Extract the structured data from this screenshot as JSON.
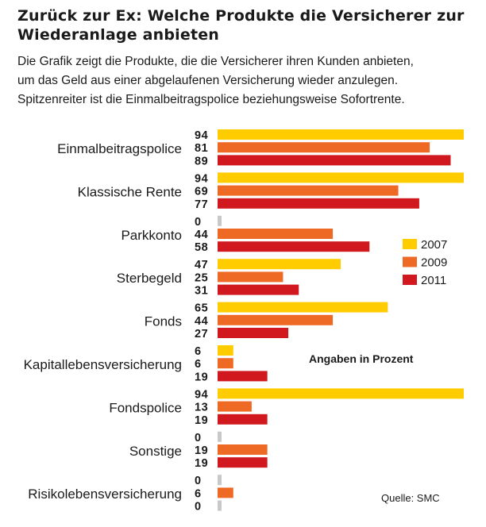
{
  "chart_data": {
    "type": "bar",
    "orientation": "horizontal",
    "title": "Zurück zur Ex: Welche Produkte die Versicherer zur Wiederanlage anbieten",
    "subtitle": [
      "Die Grafik zeigt die Produkte, die die Versicherer ihren Kunden anbieten,",
      "um das Geld aus einer abgelaufenen Versicherung wieder anzulegen.",
      "Spitzenreiter ist die Einmalbeitragspolice beziehungsweise Sofortrente."
    ],
    "categories": [
      "Einmalbeitragspolice",
      "Klassische Rente",
      "Parkkonto",
      "Sterbegeld",
      "Fonds",
      "Kapitallebensversicherung",
      "Fondspolice",
      "Sonstige",
      "Risikolebensversicherung"
    ],
    "series": [
      {
        "name": "2007",
        "color": "#FFCC00",
        "values": [
          94,
          94,
          0,
          47,
          65,
          6,
          94,
          0,
          0
        ]
      },
      {
        "name": "2009",
        "color": "#EE6A24",
        "values": [
          81,
          69,
          44,
          25,
          44,
          6,
          13,
          19,
          6
        ]
      },
      {
        "name": "2011",
        "color": "#D0181E",
        "values": [
          89,
          77,
          58,
          31,
          27,
          19,
          19,
          19,
          0
        ]
      }
    ],
    "xlim": [
      0,
      94
    ],
    "legend": "right",
    "annotation": "Angaben in Prozent",
    "source": "Quelle: SMC",
    "zero_color": "#C8C8C8"
  }
}
